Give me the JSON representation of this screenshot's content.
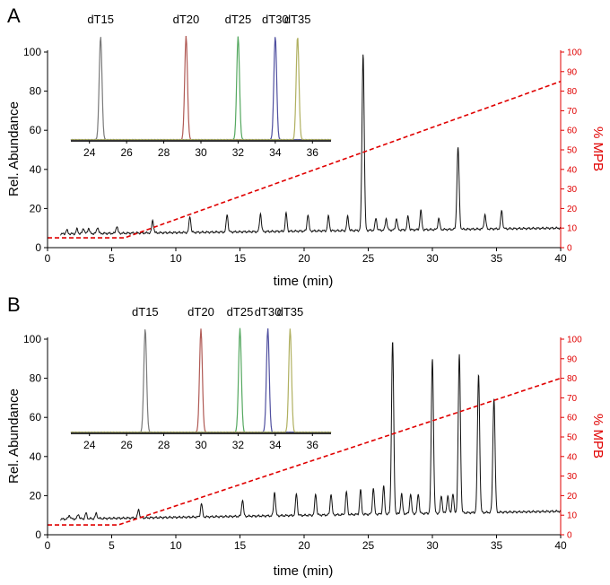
{
  "chart_data": [
    {
      "panel": "A",
      "type": "line",
      "xlabel": "time (min)",
      "ylabel": "Rel. Abundance",
      "y2label": "% MPB",
      "xlim": [
        0,
        40
      ],
      "ylim": [
        0,
        100
      ],
      "y2lim": [
        0,
        100
      ],
      "xticks": [
        0,
        5,
        10,
        15,
        20,
        25,
        30,
        35,
        40
      ],
      "yticks": [
        0,
        20,
        40,
        60,
        80,
        100
      ],
      "y2ticks": [
        0,
        10,
        20,
        30,
        40,
        50,
        60,
        70,
        80,
        90,
        100
      ],
      "baseline": {
        "start": 7,
        "end": 10
      },
      "peaks": [
        {
          "x": 1.5,
          "y": 9
        },
        {
          "x": 2.3,
          "y": 9.5
        },
        {
          "x": 2.8,
          "y": 10
        },
        {
          "x": 3.2,
          "y": 10
        },
        {
          "x": 3.9,
          "y": 10.5
        },
        {
          "x": 5.4,
          "y": 11
        },
        {
          "x": 8.2,
          "y": 14
        },
        {
          "x": 11.1,
          "y": 16
        },
        {
          "x": 14.0,
          "y": 17
        },
        {
          "x": 16.6,
          "y": 17.5
        },
        {
          "x": 18.6,
          "y": 17.5
        },
        {
          "x": 20.3,
          "y": 17
        },
        {
          "x": 21.9,
          "y": 16
        },
        {
          "x": 23.4,
          "y": 16
        },
        {
          "x": 24.6,
          "y": 99
        },
        {
          "x": 25.6,
          "y": 15
        },
        {
          "x": 26.4,
          "y": 15
        },
        {
          "x": 27.2,
          "y": 15
        },
        {
          "x": 28.1,
          "y": 16
        },
        {
          "x": 29.1,
          "y": 19
        },
        {
          "x": 30.5,
          "y": 15
        },
        {
          "x": 32.0,
          "y": 51
        },
        {
          "x": 34.1,
          "y": 17
        },
        {
          "x": 35.4,
          "y": 19
        }
      ],
      "gradient": {
        "x": [
          0,
          6,
          40
        ],
        "y": [
          5,
          5,
          85
        ]
      },
      "inset": {
        "xlim": [
          23,
          37
        ],
        "xticks": [
          24,
          26,
          28,
          30,
          32,
          34,
          36
        ],
        "labels": [
          "dT15",
          "dT20",
          "dT25",
          "dT30",
          "dT35"
        ],
        "series": [
          {
            "name": "dT15",
            "x": 24.6,
            "height": 100,
            "color": "#7a7a7a"
          },
          {
            "name": "dT20",
            "x": 29.2,
            "height": 100,
            "color": "#b05a55"
          },
          {
            "name": "dT25",
            "x": 32.0,
            "height": 100,
            "color": "#55a860"
          },
          {
            "name": "dT30",
            "x": 34.0,
            "height": 100,
            "color": "#5050a0"
          },
          {
            "name": "dT35",
            "x": 35.2,
            "height": 100,
            "color": "#b0b060"
          }
        ]
      }
    },
    {
      "panel": "B",
      "type": "line",
      "xlabel": "time (min)",
      "ylabel": "Rel. Abundance",
      "y2label": "% MPB",
      "xlim": [
        0,
        40
      ],
      "ylim": [
        0,
        100
      ],
      "y2lim": [
        0,
        100
      ],
      "xticks": [
        0,
        5,
        10,
        15,
        20,
        25,
        30,
        35,
        40
      ],
      "yticks": [
        0,
        20,
        40,
        60,
        80,
        100
      ],
      "y2ticks": [
        0,
        10,
        20,
        30,
        40,
        50,
        60,
        70,
        80,
        90,
        100
      ],
      "baseline": {
        "start": 8,
        "end": 12
      },
      "peaks": [
        {
          "x": 1.7,
          "y": 10
        },
        {
          "x": 2.4,
          "y": 10.5
        },
        {
          "x": 3.0,
          "y": 11
        },
        {
          "x": 3.8,
          "y": 11
        },
        {
          "x": 7.1,
          "y": 13
        },
        {
          "x": 12.0,
          "y": 16
        },
        {
          "x": 15.2,
          "y": 18
        },
        {
          "x": 17.7,
          "y": 22
        },
        {
          "x": 19.4,
          "y": 21
        },
        {
          "x": 20.9,
          "y": 21
        },
        {
          "x": 22.1,
          "y": 21
        },
        {
          "x": 23.3,
          "y": 22
        },
        {
          "x": 24.4,
          "y": 23
        },
        {
          "x": 25.4,
          "y": 24
        },
        {
          "x": 26.2,
          "y": 25
        },
        {
          "x": 26.9,
          "y": 99
        },
        {
          "x": 27.6,
          "y": 21
        },
        {
          "x": 28.3,
          "y": 21
        },
        {
          "x": 28.9,
          "y": 21
        },
        {
          "x": 30.0,
          "y": 90
        },
        {
          "x": 30.7,
          "y": 20
        },
        {
          "x": 31.2,
          "y": 20
        },
        {
          "x": 31.6,
          "y": 21
        },
        {
          "x": 32.1,
          "y": 92
        },
        {
          "x": 33.6,
          "y": 82
        },
        {
          "x": 34.8,
          "y": 70
        }
      ],
      "gradient": {
        "x": [
          0,
          5.5,
          40
        ],
        "y": [
          5,
          5,
          80
        ]
      },
      "inset": {
        "xlim": [
          23,
          37
        ],
        "xticks": [
          24,
          26,
          28,
          30,
          32,
          34,
          36
        ],
        "labels": [
          "dT15",
          "dT20",
          "dT25",
          "dT30",
          "dT35"
        ],
        "series": [
          {
            "name": "dT15",
            "x": 27.0,
            "height": 100,
            "color": "#7a7a7a"
          },
          {
            "name": "dT20",
            "x": 30.0,
            "height": 100,
            "color": "#b05a55"
          },
          {
            "name": "dT25",
            "x": 32.1,
            "height": 100,
            "color": "#55a860"
          },
          {
            "name": "dT30",
            "x": 33.6,
            "height": 100,
            "color": "#5050a0"
          },
          {
            "name": "dT35",
            "x": 34.8,
            "height": 100,
            "color": "#b0b060"
          }
        ]
      }
    }
  ],
  "colors": {
    "trace": "#111111",
    "gradient": "#e00000",
    "axis": "#000000"
  }
}
